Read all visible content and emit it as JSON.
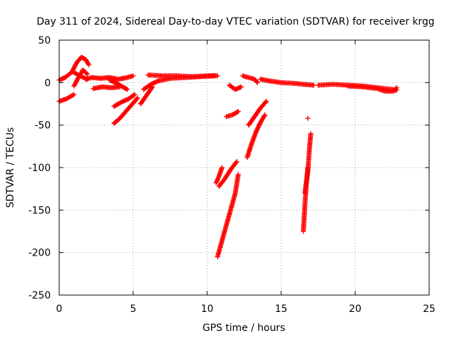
{
  "chart_data": {
    "type": "scatter",
    "title": "Day 311 of 2024, Sidereal Day-to-day VTEC variation (SDTVAR) for receiver krgg",
    "xlabel": "GPS time / hours",
    "ylabel": "SDTVAR / TECUs",
    "xlim": [
      0,
      25
    ],
    "ylim": [
      -250,
      50
    ],
    "xticks": [
      0,
      5,
      10,
      15,
      20,
      25
    ],
    "yticks": [
      -250,
      -200,
      -150,
      -100,
      -50,
      0,
      50
    ],
    "grid": true,
    "legend": "none",
    "marker": "+",
    "series_color": "#ff0000",
    "segments": [
      {
        "x": [
          0.0,
          0.5,
          1.0
        ],
        "y": [
          -22,
          -19,
          -14
        ]
      },
      {
        "x": [
          0.0,
          0.4,
          0.9,
          1.4,
          1.9
        ],
        "y": [
          3,
          6,
          13,
          8,
          4
        ]
      },
      {
        "x": [
          0.9,
          1.2,
          1.5,
          1.8,
          2.0
        ],
        "y": [
          14,
          24,
          30,
          27,
          21
        ]
      },
      {
        "x": [
          1.0,
          1.3,
          1.6,
          1.9
        ],
        "y": [
          -4,
          6,
          15,
          10
        ]
      },
      {
        "x": [
          1.8,
          2.2,
          2.8,
          3.4,
          4.0,
          4.6,
          5.0
        ],
        "y": [
          4,
          6,
          5,
          6,
          4,
          6,
          8
        ]
      },
      {
        "x": [
          2.3,
          2.9,
          3.5,
          4.1
        ],
        "y": [
          -7,
          -5,
          -6,
          -5
        ]
      },
      {
        "x": [
          3.4,
          3.8,
          4.2,
          4.6
        ],
        "y": [
          3,
          0,
          -4,
          -8
        ]
      },
      {
        "x": [
          3.7,
          4.2,
          4.7,
          5.1
        ],
        "y": [
          -28,
          -23,
          -19,
          -14
        ]
      },
      {
        "x": [
          3.7,
          4.1,
          4.5,
          4.9,
          5.3
        ],
        "y": [
          -48,
          -42,
          -34,
          -26,
          -18
        ]
      },
      {
        "x": [
          5.5,
          5.9,
          6.3
        ],
        "y": [
          -25,
          -15,
          -5
        ]
      },
      {
        "x": [
          5.7,
          6.2,
          6.7,
          7.5,
          8.5,
          9.5,
          10.5
        ],
        "y": [
          -8,
          -2,
          2,
          5,
          6,
          7,
          8
        ]
      },
      {
        "x": [
          6.0,
          7.0,
          8.0,
          9.0,
          10.0,
          10.7
        ],
        "y": [
          9,
          8,
          8,
          7,
          8,
          8
        ]
      },
      {
        "x": [
          10.6,
          10.8,
          11.0
        ],
        "y": [
          -118,
          -110,
          -100
        ]
      },
      {
        "x": [
          10.8,
          11.2,
          11.6,
          12.0
        ],
        "y": [
          -122,
          -113,
          -102,
          -93
        ]
      },
      {
        "x": [
          10.7,
          11.1,
          11.5,
          11.9,
          12.1
        ],
        "y": [
          -205,
          -180,
          -155,
          -130,
          -108
        ]
      },
      {
        "x": [
          11.3,
          11.7,
          12.1
        ],
        "y": [
          -40,
          -38,
          -34
        ]
      },
      {
        "x": [
          11.5,
          11.9,
          12.3
        ],
        "y": [
          -3,
          -8,
          -5
        ]
      },
      {
        "x": [
          12.4,
          12.8,
          13.2,
          13.4
        ],
        "y": [
          8,
          6,
          4,
          0
        ]
      },
      {
        "x": [
          12.7,
          13.0,
          13.3,
          13.6,
          13.9
        ],
        "y": [
          -88,
          -72,
          -58,
          -47,
          -38
        ]
      },
      {
        "x": [
          12.8,
          13.2,
          13.6,
          14.0
        ],
        "y": [
          -50,
          -40,
          -30,
          -22
        ]
      },
      {
        "x": [
          13.6,
          14.2,
          15.0,
          16.0,
          16.5,
          17.2
        ],
        "y": [
          4,
          2,
          0,
          -1,
          -2,
          -3
        ]
      },
      {
        "x": [
          16.5,
          16.6,
          16.7,
          16.8
        ],
        "y": [
          -175,
          -145,
          -120,
          -100
        ]
      },
      {
        "x": [
          16.6,
          16.8,
          16.9,
          17.0
        ],
        "y": [
          -130,
          -105,
          -80,
          -60
        ]
      },
      {
        "x": [
          16.8
        ],
        "y": [
          -42
        ]
      },
      {
        "x": [
          17.5,
          18.5,
          19.5,
          20.5,
          21.5,
          22.5,
          22.8
        ],
        "y": [
          -3,
          -2,
          -3,
          -4,
          -6,
          -8,
          -9
        ]
      },
      {
        "x": [
          19.5,
          20.5,
          21.5,
          22.0,
          22.6,
          22.8
        ],
        "y": [
          -4,
          -5,
          -7,
          -10,
          -10,
          -6
        ]
      }
    ]
  }
}
